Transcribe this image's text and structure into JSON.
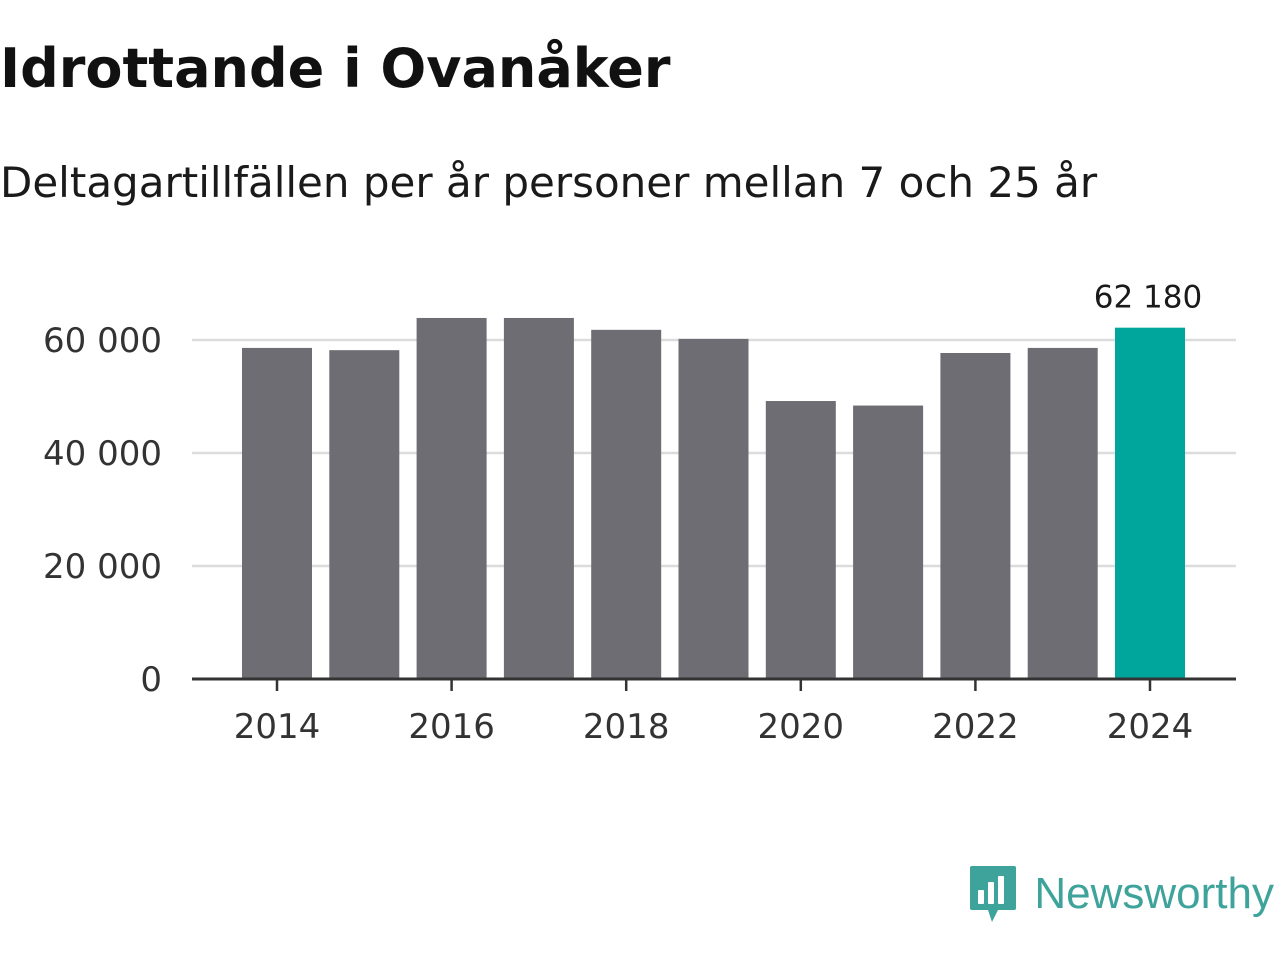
{
  "chart_data": {
    "type": "bar",
    "title": "Idrottande i Ovanåker",
    "subtitle": "Deltagartillfällen per år personer mellan 7 och 25 år",
    "categories": [
      2014,
      2015,
      2016,
      2017,
      2018,
      2019,
      2020,
      2021,
      2022,
      2023,
      2024
    ],
    "values": [
      58600,
      58200,
      63900,
      63900,
      61800,
      60200,
      49200,
      48400,
      57700,
      58600,
      62180
    ],
    "highlight_index": 10,
    "highlight_label": "62 180",
    "yticks": [
      0,
      20000,
      40000,
      60000
    ],
    "ytick_labels": [
      "0",
      "20 000",
      "40 000",
      "60 000"
    ],
    "xticks": [
      2014,
      2016,
      2018,
      2020,
      2022,
      2024
    ],
    "xtick_labels": [
      "2014",
      "2016",
      "2018",
      "2020",
      "2022",
      "2024"
    ],
    "ylim": [
      0,
      66000
    ],
    "xlabel": "",
    "ylabel": "",
    "grid": true,
    "colors": {
      "bar": "#6e6d73",
      "highlight": "#00a59b",
      "grid": "#dcdcdc",
      "axis": "#333333",
      "tick_text": "#333333"
    }
  },
  "brand": {
    "name": "Newsworthy",
    "icon": "newsworthy-logo-icon",
    "color": "#3ea39a"
  }
}
